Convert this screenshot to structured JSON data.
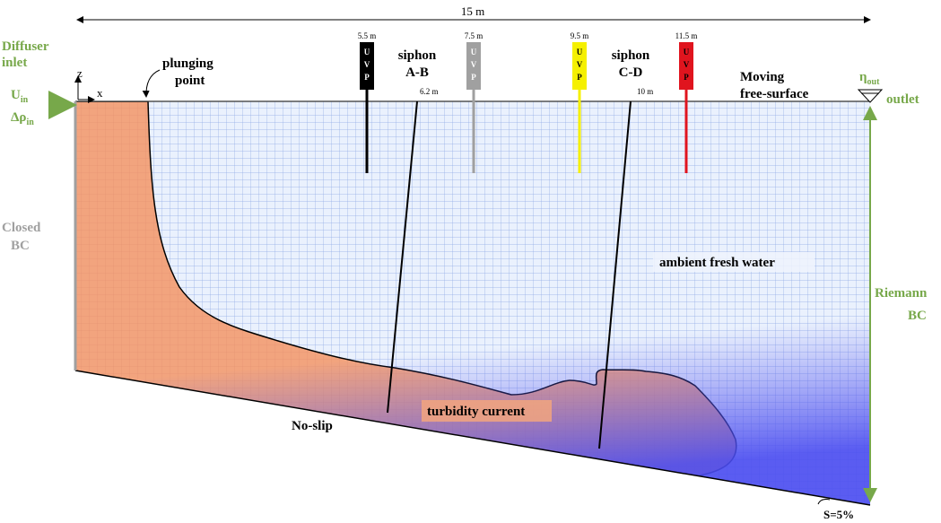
{
  "dimension": "15 m",
  "inlet": {
    "label_line1": "Diffuser",
    "label_line2": "inlet",
    "velocity": {
      "symbol": "U",
      "subscript": "in"
    },
    "density": {
      "symbol": "Δρ",
      "subscript": "in"
    }
  },
  "axes": {
    "z": "z",
    "x": "x"
  },
  "plunging": {
    "line1": "plunging",
    "line2": "point"
  },
  "probes": [
    {
      "position": "5.5 m",
      "letters": [
        "U",
        "V",
        "P"
      ]
    },
    {
      "position": "7.5 m",
      "letters": [
        "U",
        "V",
        "P"
      ]
    },
    {
      "position": "9.5 m",
      "letters": [
        "U",
        "V",
        "P"
      ]
    },
    {
      "position": "11.5 m",
      "letters": [
        "U",
        "V",
        "P"
      ]
    }
  ],
  "siphons": [
    {
      "line1": "siphon",
      "line2": "A-B",
      "position": "6.2 m"
    },
    {
      "line1": "siphon",
      "line2": "C-D",
      "position": "10 m"
    }
  ],
  "surface": {
    "line1": "Moving",
    "line2": "free-surface"
  },
  "outlet": {
    "eta": {
      "symbol": "η",
      "subscript": "out"
    },
    "label": "outlet"
  },
  "closed_bc": {
    "line1": "Closed",
    "line2": "BC"
  },
  "ambient": "ambient fresh water",
  "riemann_bc": {
    "line1": "Riemann",
    "line2": "BC"
  },
  "current": "turbidity current",
  "no_slip": "No-slip",
  "slope": "S=5%"
}
